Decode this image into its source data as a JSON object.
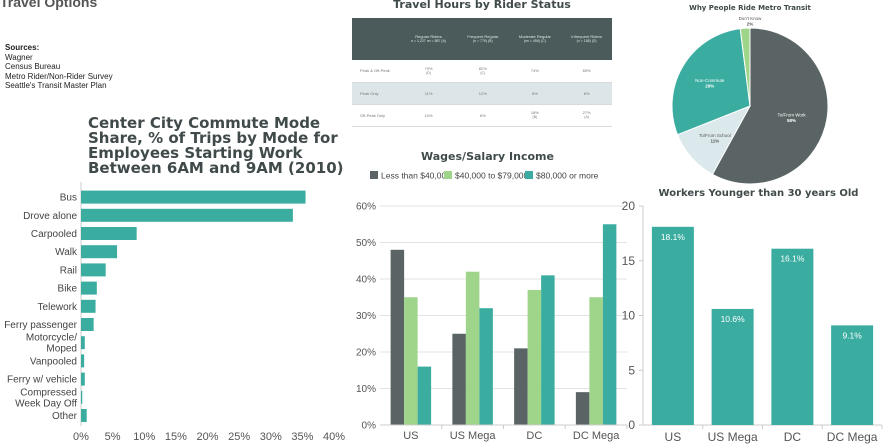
{
  "page": {
    "top_heading_fragment": "Travel Options"
  },
  "sources": {
    "heading": "Sources:",
    "lines": [
      "Wagner",
      "Census Bureau",
      "Metro Rider/Non-Rider Survey",
      "Seattle's Transit Master Plan"
    ]
  },
  "colors": {
    "teal": "#3aada0",
    "dark": "#5a6464",
    "green": "#9fd48b",
    "light": "#dce9ec",
    "tableHeader": "#4b5a5a"
  },
  "chart_data": [
    {
      "id": "mode-share",
      "type": "bar",
      "orientation": "horizontal",
      "title": "Center City Commute Mode Share, % of Trips by Mode for Employees Starting Work Between 6AM and 9AM (2010)",
      "categories": [
        "Bus",
        "Drove alone",
        "Carpooled",
        "Walk",
        "Rail",
        "Bike",
        "Telework",
        "Ferry passenger",
        "Motorcycle/ Moped",
        "Vanpooled",
        "Ferry w/ vehicle",
        "Compressed Week Day Off",
        "Other"
      ],
      "values": [
        35.5,
        33.5,
        8.8,
        5.7,
        3.9,
        2.5,
        2.3,
        2.0,
        0.6,
        0.5,
        0.6,
        0.2,
        0.9
      ],
      "xlim": [
        0,
        40
      ],
      "xticks": [
        "0%",
        "5%",
        "10%",
        "15%",
        "20%",
        "25%",
        "30%",
        "35%",
        "40%"
      ],
      "grid": false,
      "legend": "none"
    },
    {
      "id": "why-ride",
      "type": "pie",
      "title": "Why People Ride Metro Transit",
      "slices": [
        {
          "label": "To/From Work",
          "value": 58,
          "display": "58%"
        },
        {
          "label": "To/From School",
          "value": 11,
          "display": "11%"
        },
        {
          "label": "Non-Commute",
          "value": 29,
          "display": "29%"
        },
        {
          "label": "Don't Know",
          "value": 2,
          "display": "2%"
        }
      ]
    },
    {
      "id": "wages",
      "type": "bar",
      "title": "Wages/Salary Income",
      "categories": [
        "US",
        "US Mega",
        "DC",
        "DC Mega"
      ],
      "series": [
        {
          "name": "Less than $40,000",
          "values": [
            48,
            25,
            21,
            9
          ]
        },
        {
          "name": "$40,000 to $79,000",
          "values": [
            35,
            42,
            37,
            35
          ]
        },
        {
          "name": "$80,000 or more",
          "values": [
            16,
            32,
            41,
            55
          ]
        }
      ],
      "ylim": [
        0,
        60
      ],
      "yticks": [
        "0%",
        "10%",
        "20%",
        "30%",
        "40%",
        "50%",
        "60%"
      ],
      "grid": true,
      "legend": "top"
    },
    {
      "id": "young-workers",
      "type": "bar",
      "title": "Workers Younger than 30 years Old",
      "categories": [
        "US",
        "US Mega",
        "DC",
        "DC Mega"
      ],
      "values": [
        18.1,
        10.6,
        16.1,
        9.1
      ],
      "data_labels": [
        "18.1%",
        "10.6%",
        "16.1%",
        "9.1%"
      ],
      "ylim": [
        0,
        20
      ],
      "yticks": [
        "0",
        "5",
        "10",
        "15",
        "20"
      ],
      "grid": false,
      "legend": "none"
    },
    {
      "id": "travel-hours",
      "type": "table",
      "title": "Travel Hours by Rider Status",
      "columns": [
        {
          "label": "Regular Riders",
          "sub": "n = 1,227 nn = 887 (A)"
        },
        {
          "label": "Frequent Regular",
          "sub": "(n = 775) (B)"
        },
        {
          "label": "Moderate Regular",
          "sub": "(nn = 456) (C)"
        },
        {
          "label": "Infrequent Riders",
          "sub": "(n = 188) (D)"
        }
      ],
      "rows": [
        {
          "label": "Peak & Off-Peak",
          "cells": [
            "79%",
            "82%",
            "74%",
            "65%"
          ],
          "notes": [
            "(D)",
            "(C)",
            "",
            ""
          ]
        },
        {
          "label": "Peak Only",
          "cells": [
            "11%",
            "12%",
            "8%",
            "8%"
          ],
          "notes": [
            "",
            "",
            "",
            ""
          ]
        },
        {
          "label": "Off-Peak Only",
          "cells": [
            "10%",
            "6%",
            "18%",
            "27%"
          ],
          "notes": [
            "",
            "",
            "(B)",
            "(A)"
          ]
        }
      ]
    }
  ]
}
